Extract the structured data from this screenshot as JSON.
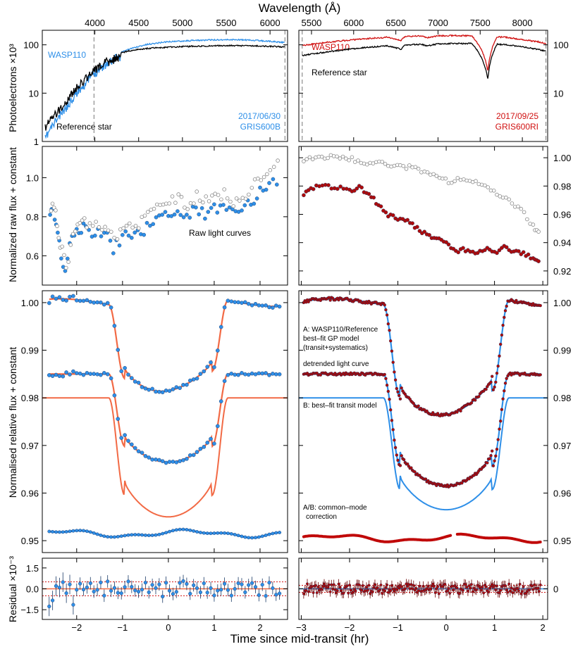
{
  "figure": {
    "top_xlabel": "Wavelength (Å)",
    "bottom_xlabel": "Time since mid-transit (hr)"
  },
  "colors": {
    "blue": "#2e8fe8",
    "red": "#d01010",
    "darkred": "#b00a0a",
    "orange": "#f26a45",
    "black": "#000000",
    "gray_open": "#888888"
  },
  "chart_data": [
    {
      "id": "spectrum-blue",
      "type": "line",
      "xlabel": "",
      "ylabel": "Photoelectrons ×10³",
      "yscale": "log",
      "xlim": [
        3400,
        6200
      ],
      "ylim": [
        1,
        200
      ],
      "xticks": [
        4000,
        4500,
        5000,
        5500,
        6000
      ],
      "yticks": [
        1,
        10,
        100
      ],
      "ytick_labels": [
        "1",
        "10",
        "100"
      ],
      "vlines": [
        3990,
        6170
      ],
      "annotations": {
        "target": "WASP110",
        "reference": "Reference star",
        "date": "2017/06/30",
        "grism": "GRIS600B"
      },
      "series": [
        {
          "name": "WASP110",
          "color": "#2e8fe8",
          "x": [
            3430,
            3500,
            3600,
            3700,
            3800,
            3900,
            4000,
            4100,
            4200,
            4300,
            4400,
            4500,
            4600,
            4800,
            5000,
            5200,
            5400,
            5600,
            5800,
            6000,
            6170
          ],
          "y": [
            1.3,
            2.3,
            4,
            7,
            13,
            20,
            32,
            45,
            58,
            72,
            85,
            95,
            105,
            118,
            124,
            128,
            131,
            132,
            128,
            122,
            115
          ]
        },
        {
          "name": "Reference star",
          "color": "#000000",
          "x": [
            3430,
            3500,
            3600,
            3700,
            3800,
            3900,
            4000,
            4100,
            4200,
            4300,
            4400,
            4500,
            4600,
            4800,
            5000,
            5200,
            5400,
            5600,
            5800,
            6000,
            6170
          ],
          "y": [
            2.2,
            3.5,
            5.5,
            9,
            16,
            24,
            38,
            50,
            60,
            70,
            78,
            83,
            87,
            91,
            95,
            97,
            99,
            99,
            98,
            96,
            93
          ]
        }
      ]
    },
    {
      "id": "spectrum-red",
      "type": "line",
      "xlabel": "",
      "ylabel": "",
      "yscale": "log",
      "xlim": [
        5350,
        8300
      ],
      "ylim": [
        1,
        200
      ],
      "xticks": [
        5500,
        6000,
        6500,
        7000,
        7500,
        8000
      ],
      "yticks": [
        1,
        10,
        100
      ],
      "ytick_labels": [
        "",
        "10",
        "100"
      ],
      "vlines": [
        5390,
        8280
      ],
      "annotations": {
        "target": "WASP110",
        "reference": "Reference star",
        "date": "2017/09/25",
        "grism": "GRIS600RI"
      },
      "series": [
        {
          "name": "WASP110",
          "color": "#d01010",
          "x": [
            5390,
            5600,
            5800,
            6000,
            6200,
            6400,
            6562,
            6600,
            6800,
            6870,
            7000,
            7200,
            7400,
            7590,
            7700,
            7800,
            8000,
            8200,
            8280
          ],
          "y": [
            100,
            112,
            122,
            132,
            140,
            148,
            125,
            152,
            158,
            145,
            158,
            160,
            158,
            30,
            150,
            148,
            132,
            118,
            108
          ]
        },
        {
          "name": "Reference star",
          "color": "#000000",
          "x": [
            5390,
            5600,
            5800,
            6000,
            6200,
            6400,
            6562,
            6600,
            6800,
            6870,
            7000,
            7200,
            7400,
            7590,
            7700,
            7800,
            8000,
            8200,
            8280
          ],
          "y": [
            62,
            70,
            78,
            86,
            92,
            98,
            84,
            102,
            106,
            97,
            108,
            110,
            110,
            20,
            106,
            104,
            94,
            82,
            76
          ]
        }
      ]
    },
    {
      "id": "raw-blue",
      "type": "scatter",
      "ylabel": "Normalized raw flux + constant",
      "xlim": [
        -2.75,
        2.6
      ],
      "ylim": [
        0.45,
        1.16
      ],
      "yticks": [
        0.6,
        0.8,
        1.0
      ],
      "ytick_labels": [
        "0.6",
        "0.8",
        "1.0"
      ],
      "annotation": "Raw light curves",
      "series": [
        {
          "name": "WASP110",
          "marker": "filled",
          "color": "#2e8fe8",
          "x": [
            -2.58,
            -2.48,
            -2.38,
            -2.25,
            -2.1,
            -1.95,
            -1.8,
            -1.6,
            -1.4,
            -1.2,
            -1.0,
            -0.8,
            -0.6,
            -0.4,
            -0.2,
            0.0,
            0.2,
            0.4,
            0.6,
            0.8,
            1.0,
            1.2,
            1.4,
            1.6,
            1.8,
            2.0,
            2.2,
            2.45
          ],
          "y": [
            0.84,
            0.8,
            0.65,
            0.51,
            0.7,
            0.73,
            0.74,
            0.72,
            0.72,
            0.64,
            0.7,
            0.72,
            0.72,
            0.76,
            0.79,
            0.82,
            0.82,
            0.8,
            0.84,
            0.82,
            0.84,
            0.86,
            0.82,
            0.84,
            0.88,
            0.92,
            0.96,
            1.0
          ]
        },
        {
          "name": "Reference",
          "marker": "open",
          "color": "#888888",
          "x": [
            -2.56,
            -2.46,
            -2.36,
            -2.23,
            -2.08,
            -1.93,
            -1.78,
            -1.58,
            -1.38,
            -1.18,
            -0.98,
            -0.78,
            -0.58,
            -0.38,
            -0.18,
            0.02,
            0.22,
            0.42,
            0.62,
            0.82,
            1.02,
            1.22,
            1.42,
            1.62,
            1.82,
            2.02,
            2.22,
            2.47
          ],
          "y": [
            0.86,
            0.82,
            0.67,
            0.53,
            0.72,
            0.75,
            0.77,
            0.75,
            0.76,
            0.68,
            0.74,
            0.77,
            0.77,
            0.82,
            0.86,
            0.88,
            0.89,
            0.86,
            0.9,
            0.88,
            0.9,
            0.92,
            0.88,
            0.9,
            0.95,
            0.99,
            1.04,
            1.07
          ]
        }
      ]
    },
    {
      "id": "raw-red",
      "type": "scatter",
      "ylabel": "",
      "xlim": [
        -3.05,
        2.1
      ],
      "ylim": [
        0.91,
        1.008
      ],
      "yticks": [
        0.92,
        0.94,
        0.96,
        0.98,
        1.0
      ],
      "ytick_labels": [
        "0.92",
        "0.94",
        "0.96",
        "0.98",
        "1.00"
      ],
      "series": [
        {
          "name": "Reference",
          "marker": "open",
          "color": "#888888",
          "x": [
            -2.95,
            -2.7,
            -2.45,
            -2.2,
            -1.95,
            -1.7,
            -1.45,
            -1.2,
            -0.95,
            -0.7,
            -0.45,
            -0.2,
            0.05,
            0.3,
            0.55,
            0.8,
            1.05,
            1.3,
            1.55,
            1.8,
            1.95
          ],
          "y": [
            0.999,
            1.0,
            1.001,
            1.0,
            0.999,
            0.996,
            0.997,
            0.995,
            0.994,
            0.993,
            0.99,
            0.988,
            0.983,
            0.985,
            0.984,
            0.98,
            0.975,
            0.97,
            0.963,
            0.952,
            0.945
          ]
        },
        {
          "name": "WASP110",
          "marker": "filled",
          "color": "#b00a0a",
          "x": [
            -2.95,
            -2.75,
            -2.5,
            -2.25,
            -2.0,
            -1.8,
            -1.6,
            -1.4,
            -1.2,
            -1.0,
            -0.8,
            -0.6,
            -0.4,
            -0.2,
            0.0,
            0.2,
            0.4,
            0.6,
            0.8,
            1.0,
            1.2,
            1.4,
            1.6,
            1.8,
            1.95
          ],
          "y": [
            0.975,
            0.979,
            0.98,
            0.979,
            0.977,
            0.979,
            0.975,
            0.966,
            0.96,
            0.957,
            0.955,
            0.95,
            0.946,
            0.943,
            0.94,
            0.934,
            0.935,
            0.932,
            0.936,
            0.933,
            0.937,
            0.934,
            0.932,
            0.929,
            0.927
          ]
        }
      ]
    },
    {
      "id": "lc-blue",
      "type": "line",
      "ylabel": "Normalised relative flux + constant",
      "xlim": [
        -2.75,
        2.6
      ],
      "ylim": [
        0.9475,
        1.0025
      ],
      "yticks": [
        0.95,
        0.96,
        0.97,
        0.98,
        0.99,
        1.0
      ],
      "ytick_labels": [
        "0.95",
        "0.96",
        "0.97",
        "0.98",
        "0.99",
        "1.00"
      ],
      "transit": {
        "t1": 1.3,
        "t2": 0.95,
        "depth": 0.0185,
        "depth_model": 0.025,
        "offset_A": 0.0,
        "offset_detr": 0.015,
        "offset_model": 0.02,
        "common_mode_level": 0.9515
      },
      "series": [
        {
          "name": "WASP110/Reference",
          "color": "#2e8fe8",
          "marker": "filled"
        },
        {
          "name": "best-fit GP model",
          "color": "#f26a45"
        },
        {
          "name": "common-mode correction",
          "color": "#2e8fe8"
        }
      ]
    },
    {
      "id": "lc-red",
      "type": "line",
      "ylabel": "",
      "xlim": [
        -3.05,
        2.1
      ],
      "ylim": [
        0.9475,
        1.0025
      ],
      "yticks": [
        0.95,
        0.96,
        0.97,
        0.98,
        0.99,
        1.0
      ],
      "ytick_labels": [
        "0.95",
        "0.96",
        "0.97",
        "0.98",
        "0.99",
        "1.00"
      ],
      "annotations": {
        "a_line1": "A: WASP110/Reference",
        "a_line2": "best–fit GP model",
        "a_line3": "(transit+systematics)",
        "detrended": "detrended light curve",
        "b_model": "B: best–fit transit model",
        "ab_line1": "A/B: common–mode",
        "ab_line2": "correction"
      },
      "transit": {
        "t1": 1.3,
        "t2": 0.95,
        "depth": 0.0235,
        "depth_model": 0.0235,
        "offset_A": 0.0,
        "offset_detr": 0.015,
        "offset_model": 0.02,
        "common_mode_level": 0.9505
      },
      "series": [
        {
          "name": "WASP110/Reference",
          "color": "#b00a0a",
          "marker": "filled"
        },
        {
          "name": "best-fit GP model",
          "color": "#2e8fe8"
        },
        {
          "name": "common-mode correction",
          "color": "#c00808"
        }
      ]
    },
    {
      "id": "resid-blue",
      "type": "scatter",
      "ylabel": "Residual ×10⁻³",
      "xlim": [
        -2.75,
        2.6
      ],
      "ylim": [
        -2.2,
        2.2
      ],
      "xticks": [
        -2,
        -1,
        0,
        1,
        2
      ],
      "xtick_labels": [
        "−2",
        "−1",
        "0",
        "1",
        "2"
      ],
      "yticks": [
        -1.5,
        0.0,
        1.5
      ],
      "ytick_labels": [
        "−1.5",
        "0.0",
        "1.5"
      ],
      "rms_lines": [
        -0.5,
        0.5
      ],
      "color": "#2e8fe8"
    },
    {
      "id": "resid-red",
      "type": "scatter",
      "ylabel": "",
      "xlim": [
        -3.05,
        2.1
      ],
      "ylim": [
        -2.2,
        2.2
      ],
      "xticks": [
        -3,
        -2,
        -1,
        0,
        1,
        2
      ],
      "xtick_labels": [
        "−3",
        "−2",
        "−1",
        "0",
        "1",
        "2"
      ],
      "yticks": [
        0
      ],
      "ytick_labels": [
        "0"
      ],
      "rms_lines": [
        -0.25,
        0.25
      ],
      "color": "#b00a0a"
    }
  ]
}
